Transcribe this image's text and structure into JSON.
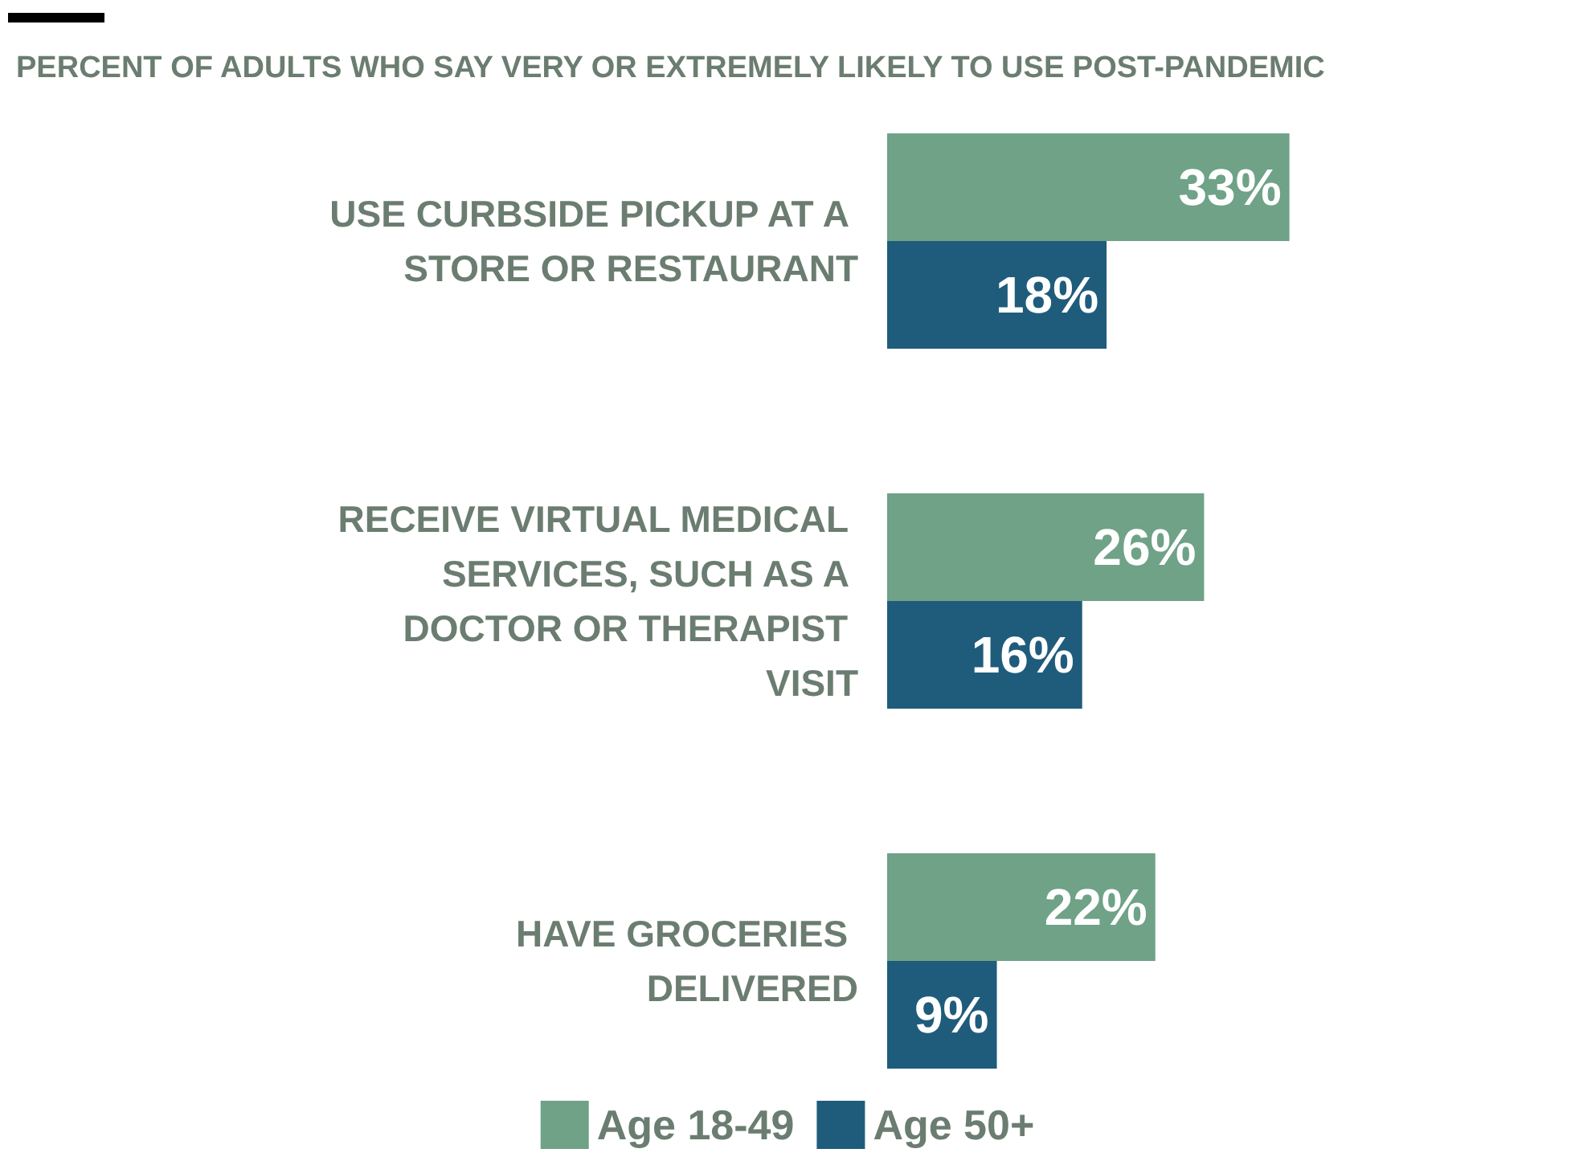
{
  "chart_data": {
    "type": "bar",
    "orientation": "horizontal",
    "title": "PERCENT OF ADULTS WHO SAY VERY OR EXTREMELY LIKELY TO USE POST-PANDEMIC",
    "categories": [
      "USE CURBSIDE PICKUP AT A STORE OR RESTAURANT",
      "RECEIVE VIRTUAL MEDICAL SERVICES, SUCH AS A DOCTOR OR THERAPIST VISIT",
      "HAVE GROCERIES DELIVERED"
    ],
    "series": [
      {
        "name": "Age 18-49",
        "color": "#6fa287",
        "values": [
          33,
          26,
          22
        ],
        "value_labels": [
          "33%",
          "26%",
          "22%"
        ]
      },
      {
        "name": "Age 50+",
        "color": "#1f5c7c",
        "values": [
          18,
          16,
          9
        ],
        "value_labels": [
          "18%",
          "16%",
          "9%"
        ]
      }
    ],
    "legend": "bottom"
  }
}
